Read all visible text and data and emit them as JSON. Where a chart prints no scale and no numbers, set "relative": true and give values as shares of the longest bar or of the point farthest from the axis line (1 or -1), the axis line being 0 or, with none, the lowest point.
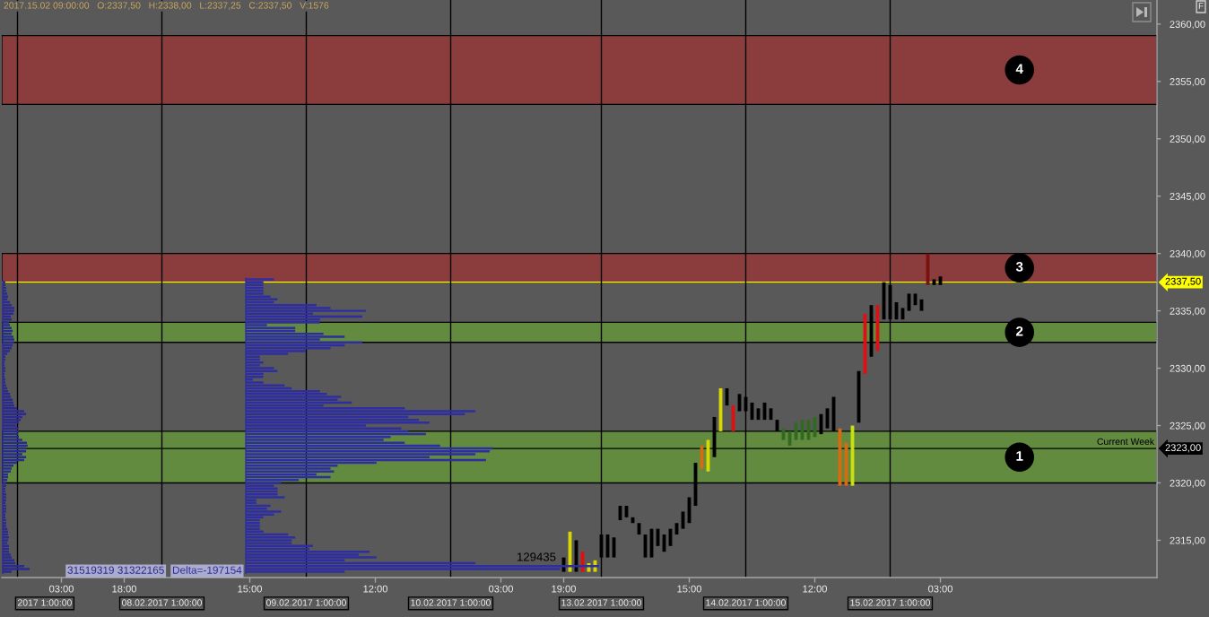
{
  "chart_data": [
    {
      "type": "bar",
      "categories": [
        null,
        null,
        null,
        null,
        null,
        null,
        null,
        null,
        null,
        "03:00",
        null,
        null,
        null,
        null,
        null,
        null,
        null,
        null,
        null,
        "18:00",
        null,
        null,
        null,
        null,
        null,
        null,
        null,
        null,
        null,
        null,
        null,
        null,
        null,
        null,
        null,
        null,
        null,
        null,
        null,
        "15:00",
        null,
        null,
        null,
        null,
        null,
        null,
        null,
        null,
        null,
        null,
        null,
        null,
        null,
        null,
        null,
        null,
        null,
        null,
        null,
        "12:00",
        null,
        null,
        null,
        null,
        null,
        null,
        null,
        null,
        null,
        null,
        null,
        null,
        null,
        null,
        null,
        null,
        null,
        null,
        null,
        "03:00",
        null,
        null,
        null,
        null,
        null,
        null,
        null,
        null,
        null,
        "19:00",
        null,
        null,
        null,
        null,
        null,
        null,
        null,
        null,
        null,
        null,
        null,
        null,
        null,
        null,
        null,
        null,
        null,
        null,
        null,
        "15:00",
        null,
        null,
        null,
        null,
        null,
        null,
        null,
        null,
        null,
        null,
        null,
        null,
        null,
        null,
        null,
        null,
        null,
        null,
        null,
        "12:00",
        null,
        null,
        null,
        null,
        null,
        null,
        null,
        null,
        null,
        null,
        null,
        null,
        null,
        null,
        null,
        null,
        null,
        null,
        null,
        "03:00",
        null,
        null,
        null,
        null,
        null,
        null,
        null,
        null,
        null,
        null,
        null,
        null,
        null,
        null,
        null,
        null,
        null,
        null,
        null,
        null,
        null,
        null,
        null,
        null,
        null,
        null,
        null,
        null,
        null,
        null,
        null,
        null,
        null,
        null
      ],
      "base": [
        null,
        null,
        null,
        null,
        null,
        null,
        null,
        null,
        null,
        null,
        null,
        null,
        null,
        null,
        null,
        null,
        null,
        null,
        null,
        null,
        null,
        null,
        null,
        null,
        null,
        null,
        null,
        null,
        null,
        null,
        null,
        null,
        null,
        null,
        null,
        null,
        null,
        null,
        null,
        null,
        null,
        null,
        null,
        null,
        null,
        null,
        null,
        null,
        null,
        null,
        null,
        null,
        null,
        null,
        null,
        null,
        null,
        null,
        null,
        null,
        null,
        null,
        null,
        null,
        null,
        null,
        null,
        null,
        null,
        null,
        null,
        null,
        null,
        null,
        null,
        null,
        null,
        null,
        null,
        null,
        null,
        null,
        null,
        null,
        null,
        null,
        null,
        null,
        null,
        2312.25,
        2312.25,
        2312.25,
        2312.25,
        2312.25,
        2312.25,
        2313.5,
        2313.5,
        2313.5,
        2316.75,
        2317,
        2316.5,
        2315.5,
        2313.5,
        2313.5,
        2314.5,
        2314,
        2314.5,
        2315.5,
        2316,
        2316.5,
        2318,
        2321.25,
        2321,
        2322.25,
        2324.5,
        2326.75,
        2324.5,
        2326.25,
        2326.25,
        2325.5,
        2325.5,
        2325.5,
        2325.5,
        2324.5,
        2323.75,
        2323.25,
        2323.75,
        2323.75,
        2323.75,
        2324,
        2324.25,
        2324.75,
        2324.5,
        2319.75,
        2319.75,
        2319.75,
        2325.25,
        2329.5,
        2331,
        2331.5,
        2334.25,
        2334.25,
        2334.25,
        2334.25,
        2335,
        2335.5,
        2335,
        2337.25,
        2337.25,
        2337.25,
        null,
        null,
        null,
        null,
        null,
        null,
        null,
        null,
        null,
        null,
        null,
        null,
        null,
        null,
        null,
        null,
        null,
        null,
        null,
        null,
        null,
        null,
        null,
        null,
        null,
        null,
        null,
        null,
        null,
        null,
        null,
        null,
        null,
        null
      ],
      "values": [
        null,
        null,
        null,
        null,
        null,
        null,
        null,
        null,
        null,
        null,
        null,
        null,
        null,
        null,
        null,
        null,
        null,
        null,
        null,
        null,
        null,
        null,
        null,
        null,
        null,
        null,
        null,
        null,
        null,
        null,
        null,
        null,
        null,
        null,
        null,
        null,
        null,
        null,
        null,
        null,
        null,
        null,
        null,
        null,
        null,
        null,
        null,
        null,
        null,
        null,
        null,
        null,
        null,
        null,
        null,
        null,
        null,
        null,
        null,
        null,
        null,
        null,
        null,
        null,
        null,
        null,
        null,
        null,
        null,
        null,
        null,
        null,
        null,
        null,
        null,
        null,
        null,
        null,
        null,
        null,
        null,
        null,
        null,
        null,
        null,
        null,
        null,
        null,
        null,
        1.25,
        3.5,
        2.75,
        1.75,
        0.75,
        1,
        2,
        2,
        1.75,
        1.25,
        1,
        0.5,
        1,
        2,
        2.5,
        1.5,
        1.5,
        1.5,
        1,
        1.5,
        2.25,
        3.75,
        2,
        2.75,
        3.5,
        3.75,
        1.5,
        2.25,
        1.5,
        1.25,
        1.5,
        1,
        1.5,
        1,
        1,
        1,
        1.25,
        1.5,
        1.75,
        1.75,
        1.75,
        1.75,
        1.75,
        3,
        5,
        3.75,
        5.25,
        4.5,
        5.25,
        4.5,
        4,
        3.25,
        3,
        1.5,
        1,
        1.5,
        1,
        1,
        2.75,
        0.5,
        0.75,
        null,
        null,
        null,
        null,
        null,
        null,
        null,
        null,
        null,
        null,
        null,
        null,
        null,
        null,
        null,
        null,
        null,
        null,
        null,
        null,
        null,
        null,
        null,
        null,
        null,
        null,
        null,
        null,
        null,
        null,
        null,
        null,
        null,
        null
      ],
      "colors": [
        null,
        null,
        null,
        null,
        null,
        null,
        null,
        null,
        null,
        null,
        null,
        null,
        null,
        null,
        null,
        null,
        null,
        null,
        null,
        null,
        null,
        null,
        null,
        null,
        null,
        null,
        null,
        null,
        null,
        null,
        null,
        null,
        null,
        null,
        null,
        null,
        null,
        null,
        null,
        null,
        null,
        null,
        null,
        null,
        null,
        null,
        null,
        null,
        null,
        null,
        null,
        null,
        null,
        null,
        null,
        null,
        null,
        null,
        null,
        null,
        null,
        null,
        null,
        null,
        null,
        null,
        null,
        null,
        null,
        null,
        null,
        null,
        null,
        null,
        null,
        null,
        null,
        null,
        null,
        null,
        null,
        null,
        null,
        null,
        null,
        null,
        null,
        null,
        null,
        "#000000",
        "#d8d800",
        "#000000",
        "#e01010",
        "#d8d800",
        "#d8d800",
        "#000000",
        "#000000",
        "#000000",
        "#000000",
        "#000000",
        "#000000",
        "#000000",
        "#000000",
        "#000000",
        "#000000",
        "#000000",
        "#000000",
        "#000000",
        "#000000",
        "#000000",
        "#000000",
        "#d86a10",
        "#d8d800",
        "#000000",
        "#d8d800",
        "#000000",
        "#e01010",
        "#000000",
        "#000000",
        "#000000",
        "#000000",
        "#000000",
        "#000000",
        "#000000",
        "#2f6a1e",
        "#2f6a1e",
        "#2f6a1e",
        "#2f6a1e",
        "#2f6a1e",
        "#2f6a1e",
        "#000000",
        "#000000",
        "#000000",
        "#d86a10",
        "#d86a10",
        "#c8e010",
        "#000000",
        "#e01010",
        "#000000",
        "#e01010",
        "#000000",
        "#000000",
        "#000000",
        "#000000",
        "#000000",
        "#000000",
        "#000000",
        "#7a1010",
        "#000000",
        "#000000",
        null,
        null,
        null,
        null,
        null,
        null,
        null,
        null,
        null,
        null,
        null,
        null,
        null,
        null,
        null,
        null,
        null,
        null,
        null,
        null,
        null,
        null,
        null,
        null,
        null,
        null,
        null,
        null,
        null,
        null,
        null,
        null,
        null,
        null
      ],
      "ylim": [
        2311.75,
        2362.1
      ],
      "yticks": [
        {
          "value": 2315,
          "label": "2315,00"
        },
        {
          "value": 2320,
          "label": "2320,00"
        },
        {
          "value": 2325,
          "label": "2325,00"
        },
        {
          "value": 2330,
          "label": "2330,00"
        },
        {
          "value": 2335,
          "label": "2335,00"
        },
        {
          "value": 2340,
          "label": "2340,00"
        },
        {
          "value": 2345,
          "label": "2345,00"
        },
        {
          "value": 2350,
          "label": "2350,00"
        },
        {
          "value": 2355,
          "label": "2355,00"
        },
        {
          "value": 2360,
          "label": "2360,00"
        }
      ],
      "bands": [
        {
          "axis": "y",
          "from": 2353,
          "to": 2359,
          "label": "4",
          "color": "#8b3d3d"
        },
        {
          "axis": "y",
          "from": 2337.5,
          "to": 2340,
          "label": "3",
          "color": "#8b3d3d"
        },
        {
          "axis": "y",
          "from": 2332.25,
          "to": 2334,
          "label": "2",
          "color": "#628b40"
        },
        {
          "axis": "y",
          "from": 2320,
          "to": 2324.5,
          "label": "1",
          "color": "#628b40"
        }
      ],
      "ref_lines": [
        {
          "axis": "y",
          "value": 2337.5,
          "label": "2337,50",
          "color": "#ffff00"
        },
        {
          "axis": "y",
          "value": 2323,
          "label": "2323,00",
          "color": "#000000"
        }
      ],
      "annotations": [
        "2017.15.02 09:00:00   O:2337,50   H:2338,00   L:2337,25   C:2337,50   V:1576",
        "F",
        {
          "text": "Current Week",
          "y": 2323
        },
        "2017 1:00:00",
        "08.02.2017 1:00:00",
        "09.02.2017 1:00:00",
        "10.02.2017 1:00:00",
        "13.02.2017 1:00:00",
        "14.02.2017 1:00:00",
        "15.02.2017 1:00:00"
      ]
    },
    {
      "type": "bar",
      "orientation": "horizontal",
      "relative": true,
      "categories": [
        null,
        null,
        null,
        null,
        null,
        null,
        null,
        null,
        null,
        null,
        null,
        null,
        null,
        null,
        null,
        null,
        null,
        null,
        null,
        null,
        null,
        null,
        null,
        null,
        null,
        null,
        null,
        null,
        null,
        null,
        null,
        null,
        null,
        null,
        null,
        null,
        null,
        null,
        null,
        null,
        null,
        null,
        null,
        null,
        null,
        null,
        null,
        null,
        null,
        null,
        null,
        null,
        null,
        null,
        null,
        null,
        null,
        null,
        null,
        null,
        null,
        null,
        null,
        null,
        null,
        null,
        null,
        null,
        null,
        null,
        null,
        null,
        null,
        null,
        null,
        null,
        null,
        null,
        null,
        null,
        null,
        null,
        null,
        null,
        null,
        null,
        null,
        null,
        null,
        null,
        null,
        null,
        null,
        null,
        null,
        null,
        null,
        null,
        null,
        null,
        null,
        null
      ],
      "values": [
        0.1,
        0.1,
        0.13,
        0.13,
        0.17,
        0.2,
        0.17,
        0.27,
        0.33,
        0.43,
        0.43,
        0.4,
        0.3,
        0.33,
        0.23,
        0.27,
        0.33,
        0.37,
        0.33,
        0.4,
        0.43,
        0.43,
        0.37,
        0.33,
        0.27,
        0.17,
        0.1,
        0.1,
        0.07,
        0.07,
        0.1,
        0.1,
        0.07,
        0.07,
        0.1,
        0.1,
        0.13,
        0.17,
        0.2,
        0.27,
        0.3,
        0.37,
        0.4,
        0.43,
        0.53,
        0.8,
        0.87,
        0.73,
        0.67,
        0.6,
        0.5,
        0.57,
        0.6,
        0.57,
        0.6,
        0.73,
        0.9,
        0.93,
        0.87,
        0.87,
        0.73,
        0.87,
        0.8,
        0.53,
        0.4,
        0.33,
        0.3,
        0.2,
        0.2,
        0.17,
        0.13,
        0.13,
        0.1,
        0.1,
        0.13,
        0.13,
        0.13,
        0.1,
        0.13,
        0.13,
        0.13,
        0.1,
        0.1,
        0.13,
        0.13,
        0.13,
        0.17,
        0.2,
        0.2,
        0.23,
        0.2,
        0.17,
        0.23,
        0.23,
        0.23,
        0.3,
        0.33,
        0.43,
        0.47,
        0.8,
        1,
        0.33
      ],
      "color": "#2b2b8f",
      "tick_labels": false,
      "annotations": [
        "31519319 31322165"
      ]
    },
    {
      "type": "bar",
      "orientation": "horizontal",
      "relative": true,
      "categories": [
        null,
        null,
        null,
        null,
        null,
        null,
        null,
        null,
        null,
        null,
        null,
        null,
        null,
        null,
        null,
        null,
        null,
        null,
        null,
        null,
        null,
        null,
        null,
        null,
        null,
        null,
        null,
        null,
        null,
        null,
        null,
        null,
        null,
        null,
        null,
        null,
        null,
        null,
        null,
        null,
        null,
        null,
        null,
        null,
        null,
        null,
        null,
        null,
        null,
        null,
        null,
        null,
        null,
        null,
        null,
        null,
        null,
        null,
        null,
        null,
        null,
        null,
        null,
        null,
        null,
        null,
        null,
        null,
        null,
        null,
        null,
        null,
        null,
        null,
        null,
        null,
        null,
        null,
        null,
        null,
        null,
        null,
        null,
        null,
        null,
        null,
        null,
        null,
        null,
        null,
        null,
        null,
        null,
        null,
        null,
        null,
        null,
        null,
        null,
        null,
        null,
        null,
        null
      ],
      "values": [
        0.08,
        0.05,
        0.05,
        0.05,
        0.05,
        0.05,
        0.07,
        0.09,
        0.08,
        0.2,
        0.24,
        0.34,
        0.19,
        0.33,
        0.21,
        0.21,
        0.06,
        0.14,
        0.14,
        0.22,
        0.28,
        0.21,
        0.33,
        0.28,
        0.24,
        0.17,
        0.12,
        0.04,
        0.04,
        0.05,
        0.04,
        0.08,
        0.09,
        0.05,
        0.05,
        0.02,
        0.05,
        0.11,
        0.13,
        0.21,
        0.23,
        0.27,
        0.26,
        0.3,
        0.22,
        0.45,
        0.65,
        0.62,
        0.46,
        0.49,
        0.52,
        0.34,
        0.44,
        0.46,
        0.51,
        0.41,
        0.39,
        0.45,
        0.55,
        0.7,
        0.69,
        0.65,
        0.52,
        0.68,
        0.37,
        0.26,
        0.24,
        0.25,
        0.2,
        0.24,
        0.15,
        0.1,
        0.08,
        0.09,
        0.09,
        0.09,
        0.11,
        0.03,
        0.03,
        0.07,
        0.06,
        0.1,
        0.08,
        0.05,
        0.04,
        0.04,
        0.04,
        0.04,
        0.05,
        0.12,
        0.14,
        0.13,
        0.13,
        0.19,
        0.18,
        0.35,
        0.32,
        0.37,
        0.28,
        0.65,
        1,
        0.89,
        0.28
      ],
      "color": "#2e2ea0",
      "tick_labels": false,
      "annotations": [
        "Delta=-197154",
        "129435"
      ]
    }
  ]
}
